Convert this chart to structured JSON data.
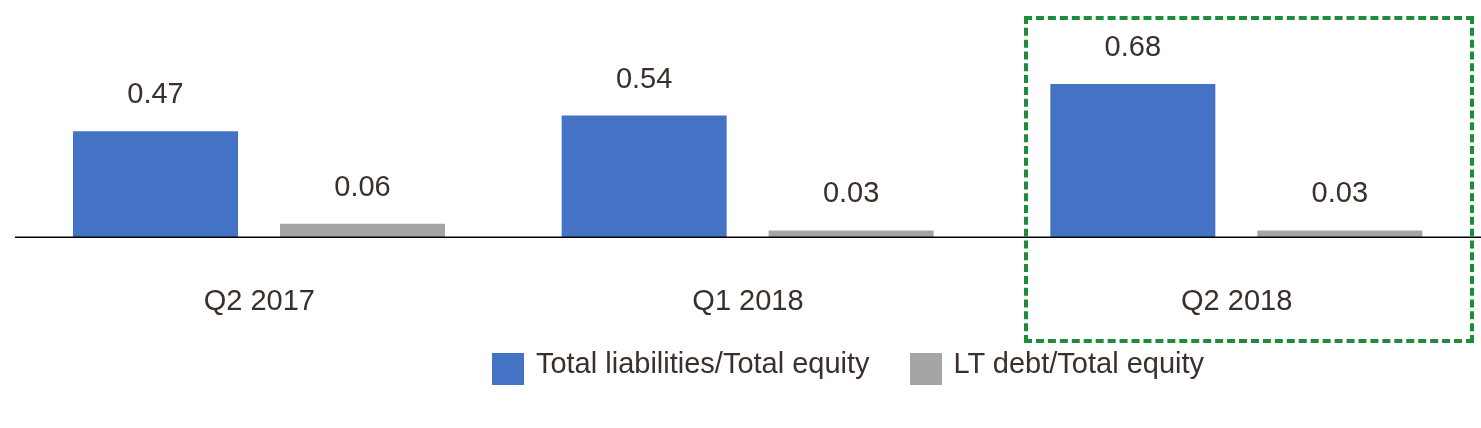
{
  "chart_data": {
    "type": "bar",
    "categories": [
      "Q2 2017",
      "Q1 2018",
      "Q2 2018"
    ],
    "series": [
      {
        "name": "Total liabilities/Total equity",
        "color": "#4472c4",
        "values": [
          0.47,
          0.54,
          0.68
        ]
      },
      {
        "name": "LT debt/Total equity",
        "color": "#a5a5a5",
        "values": [
          0.06,
          0.03,
          0.03
        ]
      }
    ],
    "data_labels": true,
    "legend": "bottom",
    "grid": false
  }
}
